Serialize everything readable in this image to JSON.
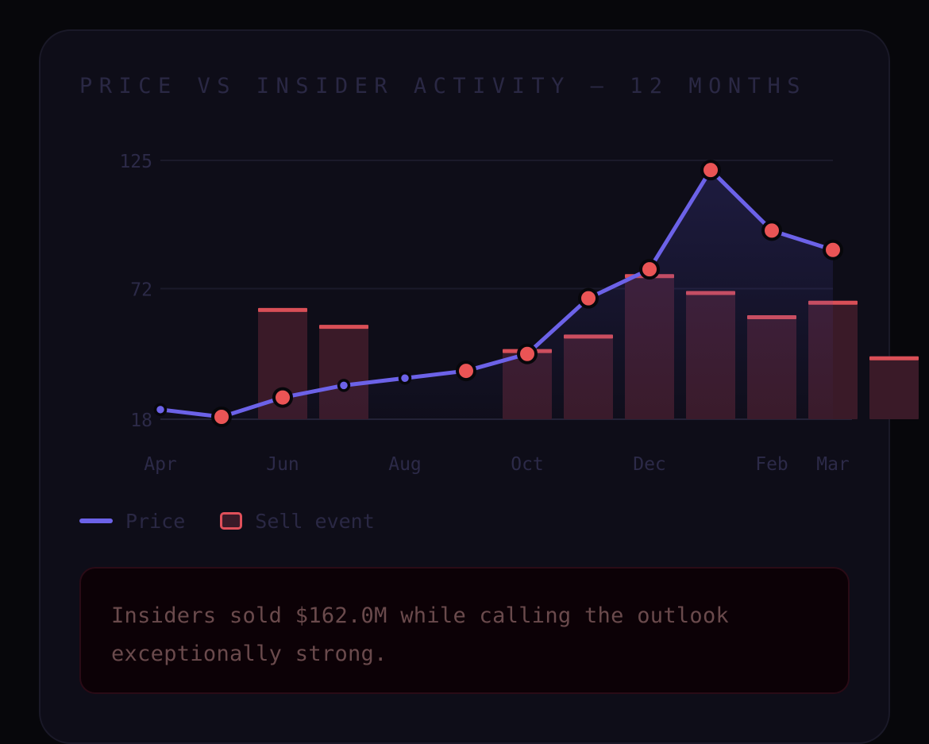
{
  "chart_title": "PRICE VS INSIDER ACTIVITY — 12 MONTHS",
  "legend": {
    "price_label": "Price",
    "sell_label": "Sell event"
  },
  "callout": {
    "text": "Insiders sold $162.0M while calling the outlook exceptionally strong."
  },
  "colors": {
    "price_line": "#6c62e8",
    "sell_marker": "#ea5455",
    "sell_bar": "#3a1a28",
    "sell_bar_top": "#d94f57"
  },
  "chart_data": {
    "type": "line",
    "title": "PRICE VS INSIDER ACTIVITY — 12 MONTHS",
    "xlabel": "",
    "ylabel": "",
    "ylim": [
      18,
      125
    ],
    "y_ticks": [
      "125",
      "72",
      "18"
    ],
    "x_tick_labels": [
      "Apr",
      "Jun",
      "Aug",
      "Oct",
      "Dec",
      "Feb",
      "Mar"
    ],
    "x_tick_index": [
      0,
      2,
      4,
      6,
      8,
      10,
      11
    ],
    "grid": true,
    "legend_position": "bottom-left",
    "series": [
      {
        "name": "Price",
        "type": "line",
        "values": [
          22,
          19,
          27,
          32,
          35,
          38,
          45,
          68,
          80,
          121,
          96,
          88
        ],
        "sell_event": [
          false,
          true,
          true,
          false,
          false,
          true,
          true,
          true,
          true,
          true,
          true,
          true
        ]
      },
      {
        "name": "Sell event",
        "type": "bar",
        "values": [
          0,
          46,
          39,
          0,
          0,
          29,
          35,
          60,
          53,
          43,
          49,
          26
        ]
      }
    ]
  }
}
